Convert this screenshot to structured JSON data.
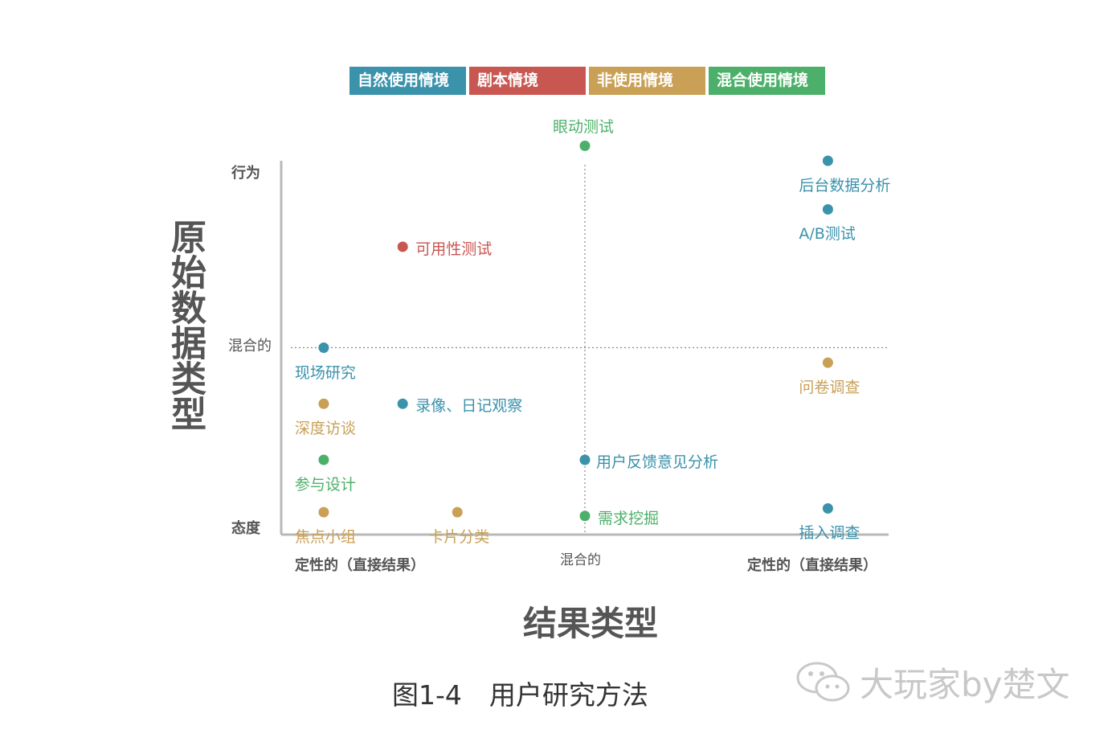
{
  "legend": [
    {
      "label": "自然使用情境",
      "color": "#3a92ab"
    },
    {
      "label": "剧本情境",
      "color": "#c85651"
    },
    {
      "label": "非使用情境",
      "color": "#c9a055"
    },
    {
      "label": "混合使用情境",
      "color": "#4db06a"
    }
  ],
  "axes": {
    "y_title": "原始数据类型",
    "x_title": "结果类型",
    "y_ticks": {
      "top": "行为",
      "middle": "混合的",
      "bottom": "态度"
    },
    "x_ticks": {
      "left": "定性的（直接结果）",
      "middle": "混合的",
      "right": "定性的（直接结果）"
    }
  },
  "chart_data": {
    "type": "scatter",
    "xlim": [
      0,
      100
    ],
    "ylim": [
      0,
      100
    ],
    "grid": false,
    "legend_position": "top",
    "categories": [
      "自然使用情境",
      "剧本情境",
      "非使用情境",
      "混合使用情境"
    ],
    "points": [
      {
        "label": "眼动测试",
        "x": 50,
        "y": 104,
        "category": "混合使用情境"
      },
      {
        "label": "后台数据分析",
        "x": 90,
        "y": 100,
        "category": "自然使用情境"
      },
      {
        "label": "A/B测试",
        "x": 90,
        "y": 87,
        "category": "自然使用情境"
      },
      {
        "label": "可用性测试",
        "x": 20,
        "y": 77,
        "category": "剧本情境"
      },
      {
        "label": "现场研究",
        "x": 7,
        "y": 50,
        "category": "自然使用情境"
      },
      {
        "label": "问卷调查",
        "x": 90,
        "y": 46,
        "category": "非使用情境"
      },
      {
        "label": "录像、日记观察",
        "x": 20,
        "y": 35,
        "category": "自然使用情境"
      },
      {
        "label": "深度访谈",
        "x": 7,
        "y": 35,
        "category": "非使用情境"
      },
      {
        "label": "用户反馈意见分析",
        "x": 50,
        "y": 20,
        "category": "自然使用情境"
      },
      {
        "label": "参与设计",
        "x": 7,
        "y": 20,
        "category": "混合使用情境"
      },
      {
        "label": "插入调查",
        "x": 90,
        "y": 7,
        "category": "自然使用情境"
      },
      {
        "label": "焦点小组",
        "x": 7,
        "y": 6,
        "category": "非使用情境"
      },
      {
        "label": "卡片分类",
        "x": 29,
        "y": 6,
        "category": "非使用情境"
      },
      {
        "label": "需求挖掘",
        "x": 50,
        "y": 5,
        "category": "混合使用情境"
      }
    ]
  },
  "caption": {
    "fig": "图1-4",
    "text": "用户研究方法"
  },
  "watermark": {
    "text": "大玩家by楚文",
    "icon": "wechat-icon"
  }
}
